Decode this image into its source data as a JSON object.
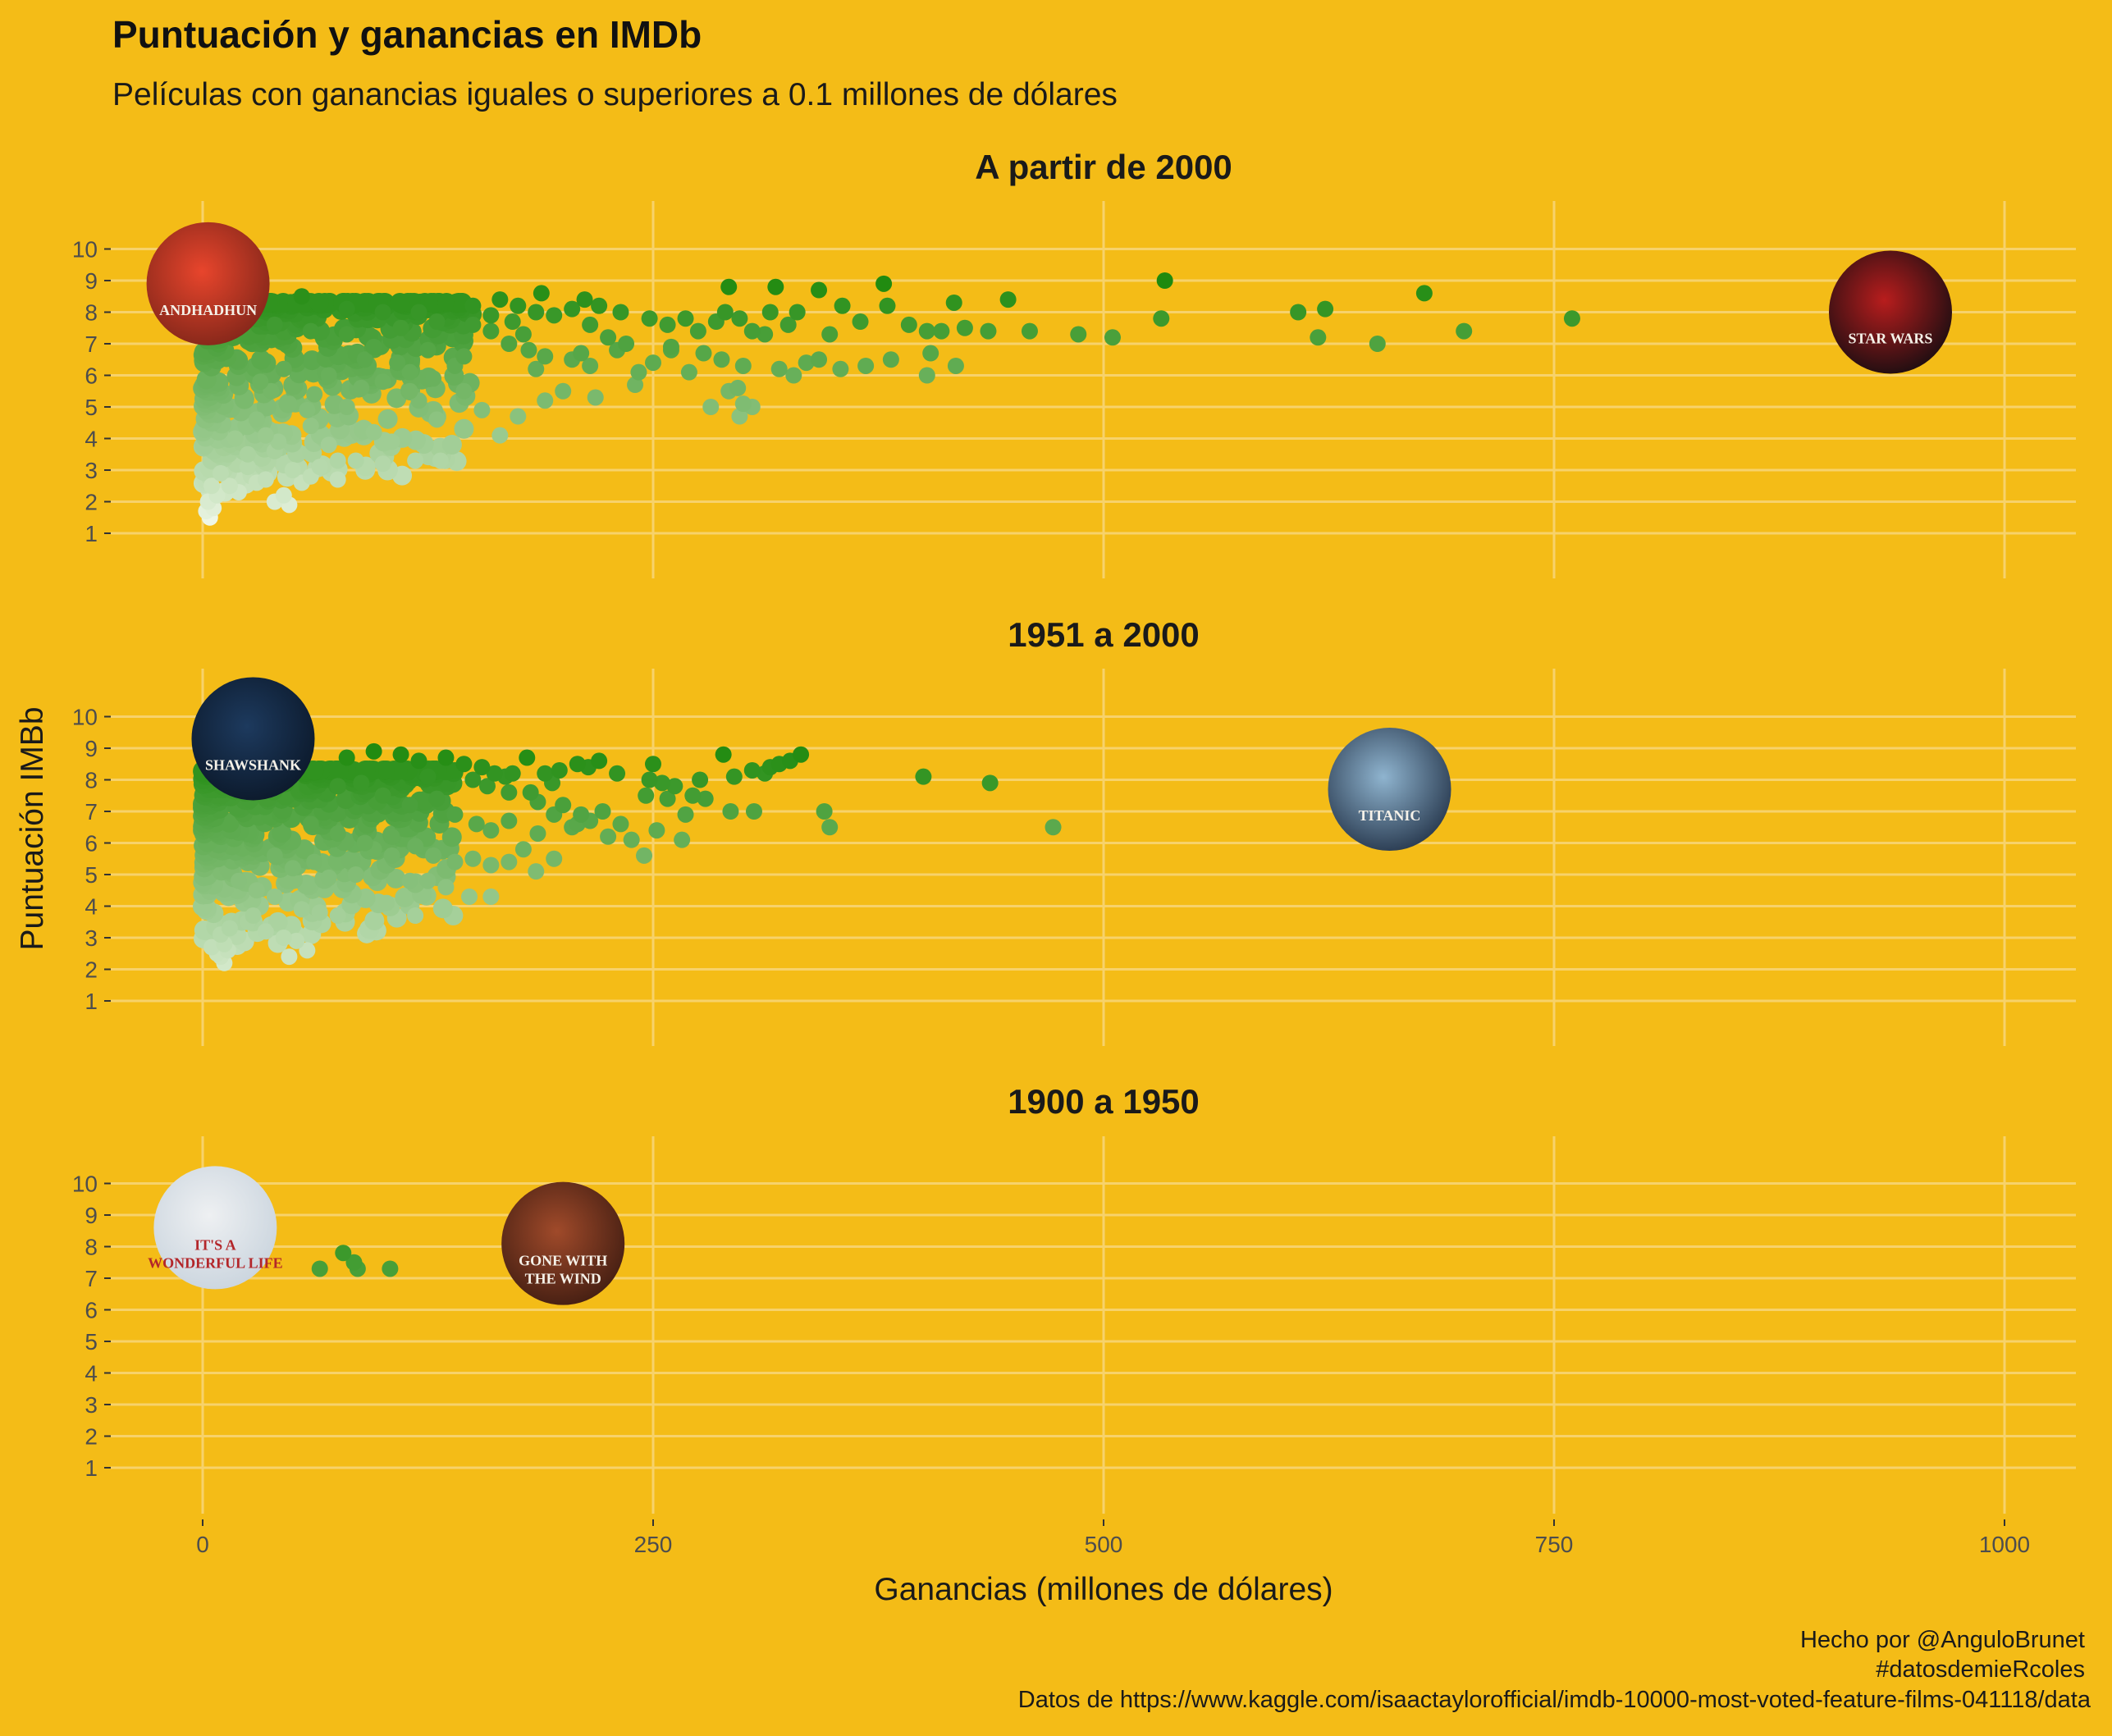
{
  "chart_data": {
    "type": "scatter",
    "title": "Puntuación y ganancias en IMDb",
    "subtitle": "Películas con ganancias iguales o superiores a 0.1 millones de dólares",
    "xlabel": "Ganancias (millones de dólares)",
    "ylabel": "Puntuación IMBb",
    "xlim": [
      0,
      1000
    ],
    "ylim": [
      1,
      10
    ],
    "x_ticks": [
      0,
      250,
      500,
      750,
      1000
    ],
    "y_ticks": [
      1,
      2,
      3,
      4,
      5,
      6,
      7,
      8,
      9,
      10
    ],
    "grid": true,
    "color_encoding": "point color scales from pale green (low score) to dark green (high score)",
    "colors": {
      "background": "#f4bc17",
      "grid": "#f7d26b",
      "low": "#eef6e6",
      "high": "#1f8a0e"
    },
    "caption": [
      "Hecho por @AnguloBrunet",
      "#datosdemieRcoles",
      "Datos de https://www.kaggle.com/isaactaylorofficial/imdb-10000-most-voted-feature-films-041118/data"
    ],
    "facets": [
      {
        "title": "A partir de 2000",
        "posters": [
          {
            "name": "andhadhun-poster",
            "text": "ANDHADHUN",
            "x": 3,
            "y": 8.9,
            "colors": [
              "#e8452c",
              "#7a2418"
            ]
          },
          {
            "name": "star-wars-poster",
            "text": "STAR WARS",
            "x": 936.7,
            "y": 8.0,
            "colors": [
              "#b81d1d",
              "#0c0c10"
            ]
          }
        ],
        "points": [
          [
            55,
            8.5
          ],
          [
            80,
            8.1
          ],
          [
            100,
            8.0
          ],
          [
            120,
            8.0
          ],
          [
            135,
            8.3
          ],
          [
            150,
            8.2
          ],
          [
            165,
            8.4
          ],
          [
            175,
            8.2
          ],
          [
            185,
            8.0
          ],
          [
            188,
            8.6
          ],
          [
            205,
            8.1
          ],
          [
            212,
            8.4
          ],
          [
            220,
            8.2
          ],
          [
            232,
            8.0
          ],
          [
            195,
            7.9
          ],
          [
            215,
            7.6
          ],
          [
            225,
            7.2
          ],
          [
            235,
            7.0
          ],
          [
            248,
            7.8
          ],
          [
            258,
            7.6
          ],
          [
            268,
            7.8
          ],
          [
            275,
            7.4
          ],
          [
            285,
            7.7
          ],
          [
            290,
            8.0
          ],
          [
            292,
            8.8
          ],
          [
            298,
            7.8
          ],
          [
            305,
            7.4
          ],
          [
            315,
            8.0
          ],
          [
            318,
            8.8
          ],
          [
            325,
            7.6
          ],
          [
            330,
            8.0
          ],
          [
            342,
            8.7
          ],
          [
            348,
            7.3
          ],
          [
            355,
            8.2
          ],
          [
            365,
            7.7
          ],
          [
            378,
            8.9
          ],
          [
            380,
            8.2
          ],
          [
            392,
            7.6
          ],
          [
            402,
            7.4
          ],
          [
            410,
            7.4
          ],
          [
            417,
            8.3
          ],
          [
            423,
            7.5
          ],
          [
            436,
            7.4
          ],
          [
            447,
            8.4
          ],
          [
            459,
            7.4
          ],
          [
            486,
            7.3
          ],
          [
            505,
            7.2
          ],
          [
            532,
            7.8
          ],
          [
            534,
            9.0
          ],
          [
            608,
            8.0
          ],
          [
            619,
            7.2
          ],
          [
            623,
            8.1
          ],
          [
            652,
            7.0
          ],
          [
            678,
            8.6
          ],
          [
            700,
            7.4
          ],
          [
            760,
            7.8
          ],
          [
            170,
            7.0
          ],
          [
            190,
            6.6
          ],
          [
            205,
            6.5
          ],
          [
            215,
            6.3
          ],
          [
            230,
            6.8
          ],
          [
            242,
            6.1
          ],
          [
            250,
            6.4
          ],
          [
            260,
            6.9
          ],
          [
            270,
            6.1
          ],
          [
            278,
            6.7
          ],
          [
            288,
            6.5
          ],
          [
            297,
            5.6
          ],
          [
            300,
            6.3
          ],
          [
            312,
            7.3
          ],
          [
            320,
            6.2
          ],
          [
            328,
            6.0
          ],
          [
            335,
            6.4
          ],
          [
            342,
            6.5
          ],
          [
            354,
            6.2
          ],
          [
            368,
            6.3
          ],
          [
            382,
            6.5
          ],
          [
            402,
            6.0
          ],
          [
            404,
            6.7
          ],
          [
            418,
            6.3
          ],
          [
            185,
            6.2
          ],
          [
            200,
            5.5
          ],
          [
            210,
            6.7
          ],
          [
            218,
            5.3
          ],
          [
            240,
            5.7
          ],
          [
            260,
            6.8
          ],
          [
            282,
            5.0
          ],
          [
            292,
            5.5
          ],
          [
            298,
            4.7
          ],
          [
            300,
            5.1
          ],
          [
            305,
            5.0
          ],
          [
            190,
            5.2
          ],
          [
            175,
            4.7
          ],
          [
            90,
            6.5
          ],
          [
            100,
            5.8
          ],
          [
            120,
            5.2
          ],
          [
            130,
            4.6
          ],
          [
            145,
            5.5
          ],
          [
            155,
            4.9
          ],
          [
            165,
            4.1
          ],
          [
            80,
            5.0
          ],
          [
            95,
            4.2
          ],
          [
            105,
            3.9
          ],
          [
            60,
            4.4
          ],
          [
            70,
            3.8
          ],
          [
            75,
            3.3
          ],
          [
            30,
            4.6
          ],
          [
            40,
            3.6
          ],
          [
            50,
            3.0
          ],
          [
            55,
            2.6
          ],
          [
            65,
            3.1
          ],
          [
            75,
            2.7
          ],
          [
            85,
            3.3
          ],
          [
            100,
            3.2
          ],
          [
            118,
            3.3
          ],
          [
            132,
            3.3
          ],
          [
            40,
            2.0
          ],
          [
            45,
            2.2
          ],
          [
            60,
            2.8
          ],
          [
            48,
            1.9
          ],
          [
            10,
            2.9
          ],
          [
            15,
            2.5
          ],
          [
            20,
            2.3
          ],
          [
            25,
            3.1
          ],
          [
            30,
            2.6
          ],
          [
            35,
            2.7
          ],
          [
            5,
            2.5
          ],
          [
            8,
            2.2
          ],
          [
            3,
            2.0
          ],
          [
            6,
            1.8
          ],
          [
            2,
            1.7
          ],
          [
            4,
            1.5
          ],
          [
            40,
            7.6
          ],
          [
            60,
            7.4
          ],
          [
            80,
            7.3
          ],
          [
            110,
            7.5
          ],
          [
            130,
            7.7
          ],
          [
            150,
            7.6
          ],
          [
            160,
            7.4
          ],
          [
            125,
            6.8
          ],
          [
            140,
            6.3
          ],
          [
            115,
            6.1
          ],
          [
            145,
            6.6
          ],
          [
            160,
            7.9
          ],
          [
            172,
            7.7
          ],
          [
            178,
            7.3
          ],
          [
            181,
            6.8
          ],
          [
            45,
            6.2
          ],
          [
            70,
            6.0
          ],
          [
            95,
            6.9
          ],
          [
            108,
            6.4
          ],
          [
            115,
            5.5
          ],
          [
            128,
            5.9
          ],
          [
            62,
            5.4
          ],
          [
            88,
            5.6
          ],
          [
            48,
            5.1
          ],
          [
            58,
            4.9
          ],
          [
            38,
            5.5
          ],
          [
            32,
            5.8
          ],
          [
            35,
            4.1
          ],
          [
            42,
            3.9
          ],
          [
            25,
            3.5
          ],
          [
            18,
            4.0
          ]
        ]
      },
      {
        "title": "1951 a 2000",
        "posters": [
          {
            "name": "shawshank-poster",
            "text": "SHAWSHANK",
            "x": 28,
            "y": 9.3,
            "colors": [
              "#1d3a5e",
              "#0a1626"
            ]
          },
          {
            "name": "titanic-poster",
            "text": "TITANIC",
            "x": 658.7,
            "y": 7.7,
            "colors": [
              "#8fb4cf",
              "#1e2d42"
            ]
          }
        ],
        "points": [
          [
            80,
            8.7
          ],
          [
            95,
            8.9
          ],
          [
            110,
            8.8
          ],
          [
            120,
            8.6
          ],
          [
            135,
            8.7
          ],
          [
            145,
            8.5
          ],
          [
            155,
            8.4
          ],
          [
            162,
            8.2
          ],
          [
            168,
            8.1
          ],
          [
            172,
            8.2
          ],
          [
            180,
            8.7
          ],
          [
            190,
            8.2
          ],
          [
            198,
            8.3
          ],
          [
            208,
            8.5
          ],
          [
            214,
            8.4
          ],
          [
            220,
            8.6
          ],
          [
            230,
            8.2
          ],
          [
            248,
            8.0
          ],
          [
            250,
            8.5
          ],
          [
            255,
            7.9
          ],
          [
            262,
            7.8
          ],
          [
            272,
            7.5
          ],
          [
            276,
            8.0
          ],
          [
            289,
            8.8
          ],
          [
            295,
            8.1
          ],
          [
            305,
            8.3
          ],
          [
            312,
            8.2
          ],
          [
            315,
            8.4
          ],
          [
            320,
            8.5
          ],
          [
            326,
            8.6
          ],
          [
            332,
            8.8
          ],
          [
            400,
            8.1
          ],
          [
            437,
            7.9
          ],
          [
            182,
            7.6
          ],
          [
            200,
            7.2
          ],
          [
            210,
            6.9
          ],
          [
            222,
            7.0
          ],
          [
            232,
            6.6
          ],
          [
            238,
            6.1
          ],
          [
            246,
            7.5
          ],
          [
            258,
            7.4
          ],
          [
            266,
            6.1
          ],
          [
            268,
            6.9
          ],
          [
            279,
            7.4
          ],
          [
            293,
            7.0
          ],
          [
            306,
            7.0
          ],
          [
            345,
            7.0
          ],
          [
            348,
            6.5
          ],
          [
            472,
            6.5
          ],
          [
            100,
            7.5
          ],
          [
            115,
            7.2
          ],
          [
            130,
            7.4
          ],
          [
            140,
            6.9
          ],
          [
            152,
            6.6
          ],
          [
            160,
            6.4
          ],
          [
            170,
            6.7
          ],
          [
            178,
            5.8
          ],
          [
            186,
            6.3
          ],
          [
            195,
            6.9
          ],
          [
            205,
            6.5
          ],
          [
            215,
            6.7
          ],
          [
            225,
            6.2
          ],
          [
            245,
            5.6
          ],
          [
            252,
            6.4
          ],
          [
            60,
            6.6
          ],
          [
            75,
            6.3
          ],
          [
            90,
            6.0
          ],
          [
            105,
            6.2
          ],
          [
            118,
            5.9
          ],
          [
            128,
            5.6
          ],
          [
            140,
            5.4
          ],
          [
            150,
            5.5
          ],
          [
            160,
            5.3
          ],
          [
            170,
            5.4
          ],
          [
            185,
            5.1
          ],
          [
            195,
            5.5
          ],
          [
            208,
            6.6
          ],
          [
            40,
            5.6
          ],
          [
            50,
            5.2
          ],
          [
            62,
            5.4
          ],
          [
            70,
            4.9
          ],
          [
            85,
            5.0
          ],
          [
            95,
            5.8
          ],
          [
            105,
            5.6
          ],
          [
            115,
            4.8
          ],
          [
            125,
            4.8
          ],
          [
            135,
            4.6
          ],
          [
            148,
            4.3
          ],
          [
            160,
            4.3
          ],
          [
            102,
            4.1
          ],
          [
            118,
            3.7
          ],
          [
            20,
            4.8
          ],
          [
            30,
            4.5
          ],
          [
            40,
            4.3
          ],
          [
            55,
            3.9
          ],
          [
            65,
            3.8
          ],
          [
            75,
            3.7
          ],
          [
            25,
            3.5
          ],
          [
            35,
            3.2
          ],
          [
            45,
            3.0
          ],
          [
            15,
            3.3
          ],
          [
            10,
            3.1
          ],
          [
            12,
            2.8
          ],
          [
            10,
            2.4
          ],
          [
            12,
            2.2
          ],
          [
            8,
            2.5
          ],
          [
            5,
            2.7
          ],
          [
            14,
            2.6
          ],
          [
            48,
            2.4
          ],
          [
            52,
            2.9
          ],
          [
            58,
            2.6
          ],
          [
            28,
            3.7
          ],
          [
            42,
            3.5
          ],
          [
            75,
            7.8
          ],
          [
            88,
            7.9
          ],
          [
            102,
            8.3
          ],
          [
            125,
            8.1
          ],
          [
            140,
            8.3
          ],
          [
            150,
            8.0
          ],
          [
            158,
            7.8
          ],
          [
            170,
            7.6
          ],
          [
            186,
            7.3
          ],
          [
            194,
            7.9
          ]
        ]
      },
      {
        "title": "1900 a 1950",
        "posters": [
          {
            "name": "its-a-wonderful-life-poster",
            "text": "IT'S A WONDERFUL LIFE",
            "x": 7,
            "y": 8.6,
            "colors": [
              "#eef0f2",
              "#c7d2dc"
            ]
          },
          {
            "name": "gone-with-the-wind-poster",
            "text": "GONE WITH THE WIND",
            "x": 200,
            "y": 8.1,
            "colors": [
              "#a04a2a",
              "#3b1a10"
            ]
          }
        ],
        "points": [
          [
            65,
            7.3
          ],
          [
            78,
            7.8
          ],
          [
            84,
            7.5
          ],
          [
            86,
            7.3
          ],
          [
            104,
            7.3
          ]
        ]
      }
    ]
  }
}
